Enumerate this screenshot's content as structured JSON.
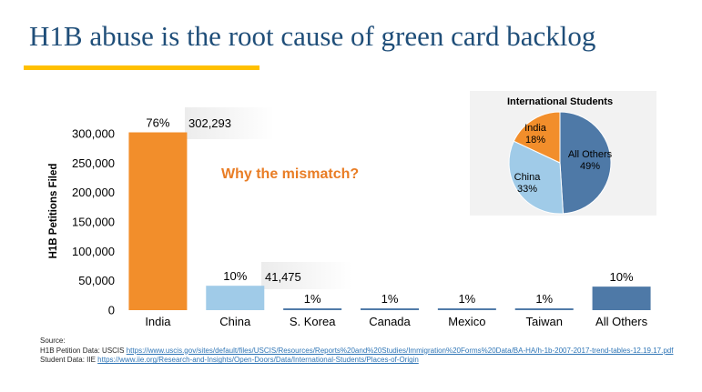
{
  "slide": {
    "title": "H1B abuse is the root cause of green card backlog",
    "accent_color": "#ffc000",
    "title_color": "#1f4e79"
  },
  "chart_data": [
    {
      "type": "bar",
      "title": "",
      "xlabel": "",
      "ylabel": "H1B Petitions Filed",
      "categories": [
        "India",
        "China",
        "S. Korea",
        "Canada",
        "Mexico",
        "Taiwan",
        "All Others"
      ],
      "values": [
        302293,
        41475,
        3000,
        3000,
        3000,
        3000,
        40000
      ],
      "colors": [
        "#f28e2b",
        "#a0cbe8",
        "#4e79a7",
        "#4e79a7",
        "#4e79a7",
        "#4e79a7",
        "#4e79a7"
      ],
      "percent_labels": [
        "76%",
        "10%",
        "1%",
        "1%",
        "1%",
        "1%",
        "10%"
      ],
      "count_labels": {
        "India": "302,293",
        "China": "41,475"
      },
      "yticks": [
        0,
        50000,
        100000,
        150000,
        200000,
        250000,
        300000
      ],
      "ytick_labels": [
        "0",
        "50,000",
        "100,000",
        "150,000",
        "200,000",
        "250,000",
        "300,000"
      ],
      "ylim": [
        0,
        300000
      ],
      "grid": false,
      "annotation": "Why the mismatch?",
      "annotation_color": "#e97d25"
    },
    {
      "type": "pie",
      "title": "International Students",
      "slices": [
        {
          "label": "All Others",
          "value": 49,
          "text": "49%",
          "color": "#4e79a7"
        },
        {
          "label": "China",
          "value": 33,
          "text": "33%",
          "color": "#a0cbe8"
        },
        {
          "label": "India",
          "value": 18,
          "text": "18%",
          "color": "#f28e2b"
        }
      ]
    }
  ],
  "sources": {
    "heading": "Source:",
    "h1b_prefix": "H1B Petition Data: USCIS",
    "h1b_url": "https://www.uscis.gov/sites/default/files/USCIS/Resources/Reports%20and%20Studies/Immigration%20Forms%20Data/BA-HA/h-1b-2007-2017-trend-tables-12.19.17.pdf",
    "student_prefix": "Student Data: IIE",
    "student_url": "https://www.iie.org/Research-and-Insights/Open-Doors/Data/International-Students/Places-of-Origin"
  }
}
